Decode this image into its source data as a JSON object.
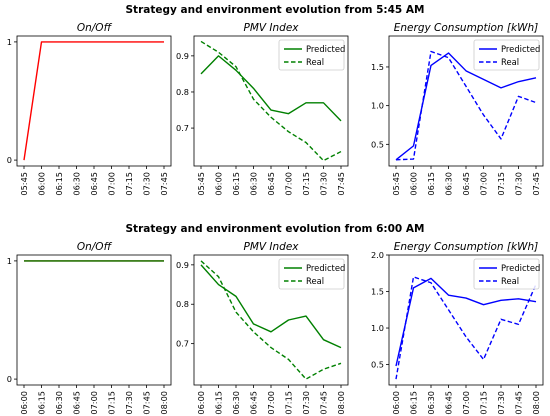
{
  "chart_data": [
    {
      "group_title": "Strategy and environment evolution from 5:45 AM",
      "title": "On/Off",
      "type": "line",
      "x": [
        "05:45",
        "06:00",
        "06:15",
        "06:30",
        "06:45",
        "07:00",
        "07:15",
        "07:30",
        "07:45"
      ],
      "ylim": [
        -0.05,
        1.05
      ],
      "yticks": [
        0,
        1
      ],
      "ytick_labels": [
        "0",
        "1"
      ],
      "series": [
        {
          "color": "#ff0000",
          "style": "solid",
          "values": [
            0,
            1,
            1,
            1,
            1,
            1,
            1,
            1,
            1
          ]
        }
      ],
      "legend": null
    },
    {
      "title": "PMV Index",
      "type": "line",
      "x": [
        "05:45",
        "06:00",
        "06:15",
        "06:30",
        "06:45",
        "07:00",
        "07:15",
        "07:30",
        "07:45"
      ],
      "ylim": [
        0.595,
        0.955
      ],
      "yticks": [
        0.7,
        0.8,
        0.9
      ],
      "ytick_labels": [
        "0.7",
        "0.8",
        "0.9"
      ],
      "series": [
        {
          "name": "Predicted",
          "color": "#008000",
          "style": "solid",
          "values": [
            0.85,
            0.9,
            0.86,
            0.81,
            0.75,
            0.74,
            0.77,
            0.77,
            0.72
          ]
        },
        {
          "name": "Real",
          "color": "#008000",
          "style": "dashed",
          "values": [
            0.94,
            0.91,
            0.87,
            0.78,
            0.73,
            0.69,
            0.66,
            0.61,
            0.635
          ]
        }
      ],
      "legend": "top-right"
    },
    {
      "title": "Energy Consumption [kWh]",
      "type": "line",
      "x": [
        "05:45",
        "06:00",
        "06:15",
        "06:30",
        "06:45",
        "07:00",
        "07:15",
        "07:30",
        "07:45"
      ],
      "ylim": [
        0.22,
        1.9
      ],
      "yticks": [
        0.5,
        1.0,
        1.5
      ],
      "ytick_labels": [
        "0.5",
        "1.0",
        "1.5"
      ],
      "series": [
        {
          "name": "Predicted",
          "color": "#0000ff",
          "style": "solid",
          "values": [
            0.3,
            0.48,
            1.52,
            1.68,
            1.45,
            1.34,
            1.23,
            1.31,
            1.36
          ]
        },
        {
          "name": "Real",
          "color": "#0000ff",
          "style": "dashed",
          "values": [
            0.3,
            0.31,
            1.7,
            1.62,
            1.25,
            0.88,
            0.57,
            1.12,
            1.04
          ]
        }
      ],
      "legend": "top-right"
    },
    {
      "group_title": "Strategy and environment evolution from 6:00 AM",
      "title": "On/Off",
      "type": "line",
      "x": [
        "06:00",
        "06:15",
        "06:30",
        "06:45",
        "07:00",
        "07:15",
        "07:30",
        "07:45",
        "08:00"
      ],
      "ylim": [
        -0.05,
        1.05
      ],
      "yticks": [
        0,
        1
      ],
      "ytick_labels": [
        "0",
        "1"
      ],
      "series": [
        {
          "color": "#ff0000",
          "style": "solid",
          "values": [
            1,
            1,
            1,
            1,
            1,
            1,
            1,
            1,
            1
          ]
        },
        {
          "color": "#008000",
          "style": "solid",
          "values": [
            1,
            1,
            1,
            1,
            1,
            1,
            1,
            1,
            1
          ]
        }
      ],
      "legend": null
    },
    {
      "title": "PMV Index",
      "type": "line",
      "x": [
        "06:00",
        "06:15",
        "06:30",
        "06:45",
        "07:00",
        "07:15",
        "07:30",
        "07:45",
        "08:00"
      ],
      "ylim": [
        0.595,
        0.925
      ],
      "yticks": [
        0.7,
        0.8,
        0.9
      ],
      "ytick_labels": [
        "0.7",
        "0.8",
        "0.9"
      ],
      "series": [
        {
          "name": "Predicted",
          "color": "#008000",
          "style": "solid",
          "values": [
            0.9,
            0.85,
            0.82,
            0.75,
            0.73,
            0.76,
            0.77,
            0.71,
            0.69
          ]
        },
        {
          "name": "Real",
          "color": "#008000",
          "style": "dashed",
          "values": [
            0.91,
            0.87,
            0.78,
            0.73,
            0.69,
            0.66,
            0.61,
            0.635,
            0.65
          ]
        }
      ],
      "legend": "top-right"
    },
    {
      "title": "Energy Consumption [kWh]",
      "type": "line",
      "x": [
        "06:00",
        "06:15",
        "06:30",
        "06:45",
        "07:00",
        "07:15",
        "07:30",
        "07:45",
        "08:00"
      ],
      "ylim": [
        0.22,
        2.0
      ],
      "yticks": [
        0.5,
        1.0,
        1.5,
        2.0
      ],
      "ytick_labels": [
        "0.5",
        "1.0",
        "1.5",
        "2.0"
      ],
      "series": [
        {
          "name": "Predicted",
          "color": "#0000ff",
          "style": "solid",
          "values": [
            0.48,
            1.55,
            1.68,
            1.45,
            1.41,
            1.32,
            1.38,
            1.4,
            1.36
          ]
        },
        {
          "name": "Real",
          "color": "#0000ff",
          "style": "dashed",
          "values": [
            0.3,
            1.7,
            1.62,
            1.25,
            0.88,
            0.57,
            1.12,
            1.05,
            1.6
          ]
        }
      ],
      "legend": "top-right"
    }
  ]
}
